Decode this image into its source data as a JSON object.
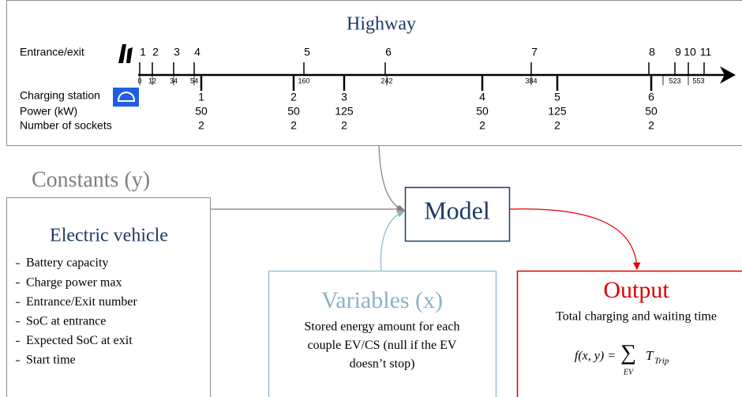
{
  "highway": {
    "title": "Highway",
    "entrance_label": "Entrance/exit",
    "charging_label": "Charging station",
    "power_label": "Power (kW)",
    "sockets_label": "Number of sockets",
    "exits": [
      "1",
      "2",
      "3",
      "4",
      "5",
      "6",
      "7",
      "8",
      "9",
      "10",
      "11"
    ],
    "km_marks": [
      "0",
      "12",
      "34",
      "54",
      "160",
      "242",
      "384",
      "523",
      "553"
    ],
    "stations": [
      {
        "number": "1",
        "power": "50",
        "sockets": "2"
      },
      {
        "number": "2",
        "power": "50",
        "sockets": "2"
      },
      {
        "number": "3",
        "power": "125",
        "sockets": "2"
      },
      {
        "number": "4",
        "power": "50",
        "sockets": "2"
      },
      {
        "number": "5",
        "power": "125",
        "sockets": "2"
      },
      {
        "number": "6",
        "power": "50",
        "sockets": "2"
      }
    ]
  },
  "constants": {
    "title": "Constants (y)"
  },
  "ev": {
    "title": "Electric vehicle",
    "items": [
      "Battery capacity",
      "Charge power max",
      "Entrance/Exit number",
      "SoC at entrance",
      "Expected SoC at exit",
      "Start time"
    ]
  },
  "model": {
    "label": "Model"
  },
  "variables": {
    "title": "Variables (x)",
    "description": [
      "Stored energy amount for each",
      "couple EV/CS (null if the EV",
      "doesn’t stop)"
    ]
  },
  "output": {
    "title": "Output",
    "description": "Total charging and waiting time",
    "formula": {
      "lhs": "f(x, y) =",
      "sum": "∑",
      "sum_index": "EV",
      "term": "T",
      "term_index": "Trip"
    }
  }
}
